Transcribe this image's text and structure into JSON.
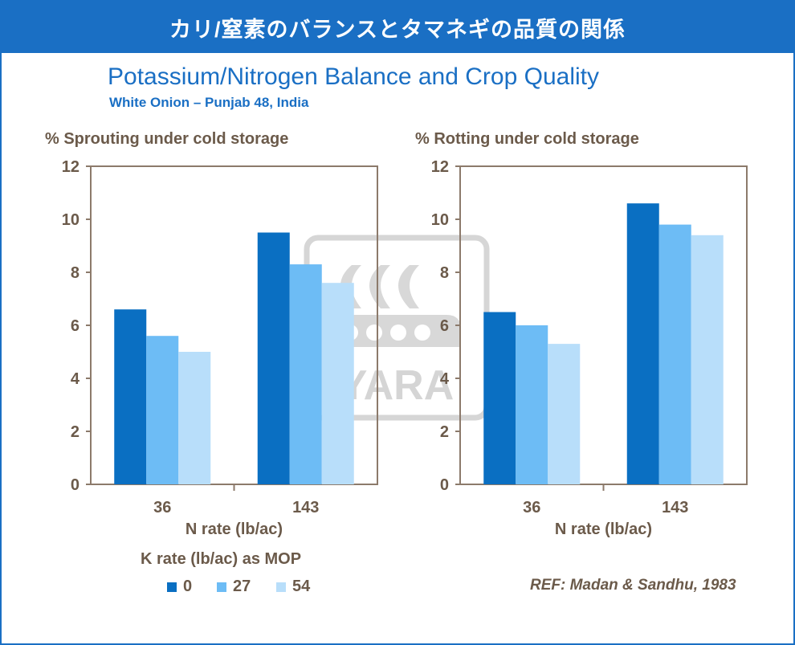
{
  "banner_title": "カリ/窒素のバランスとタマネギの品質の関係",
  "title": "Potassium/Nitrogen Balance and Crop Quality",
  "subtitle": "White Onion  – Punjab 48, India",
  "watermark": "YARA",
  "reference": "REF: Madan & Sandhu, 1983",
  "legend": {
    "title": "K rate (lb/ac) as MOP",
    "items": [
      {
        "label": "0",
        "color": "#0a6fc2"
      },
      {
        "label": "27",
        "color": "#6dbcf5"
      },
      {
        "label": "54",
        "color": "#b8defa"
      }
    ]
  },
  "chart_data": [
    {
      "type": "bar",
      "ylabel": "%  Sprouting under cold storage",
      "xlabel": "N rate (lb/ac)",
      "categories": [
        "36",
        "143"
      ],
      "ylim": [
        0,
        12
      ],
      "yticks": [
        "0",
        "2",
        "4",
        "6",
        "8",
        "10",
        "12"
      ],
      "series": [
        {
          "name": "0",
          "values": [
            6.6,
            9.5
          ]
        },
        {
          "name": "27",
          "values": [
            5.6,
            8.3
          ]
        },
        {
          "name": "54",
          "values": [
            5.0,
            7.6
          ]
        }
      ]
    },
    {
      "type": "bar",
      "ylabel": "%  Rotting under cold storage",
      "xlabel": "N rate (lb/ac)",
      "categories": [
        "36",
        "143"
      ],
      "ylim": [
        0,
        12
      ],
      "yticks": [
        "0",
        "2",
        "4",
        "6",
        "8",
        "10",
        "12"
      ],
      "series": [
        {
          "name": "0",
          "values": [
            6.5,
            10.6
          ]
        },
        {
          "name": "27",
          "values": [
            6.0,
            9.8
          ]
        },
        {
          "name": "54",
          "values": [
            5.3,
            9.4
          ]
        }
      ]
    }
  ]
}
